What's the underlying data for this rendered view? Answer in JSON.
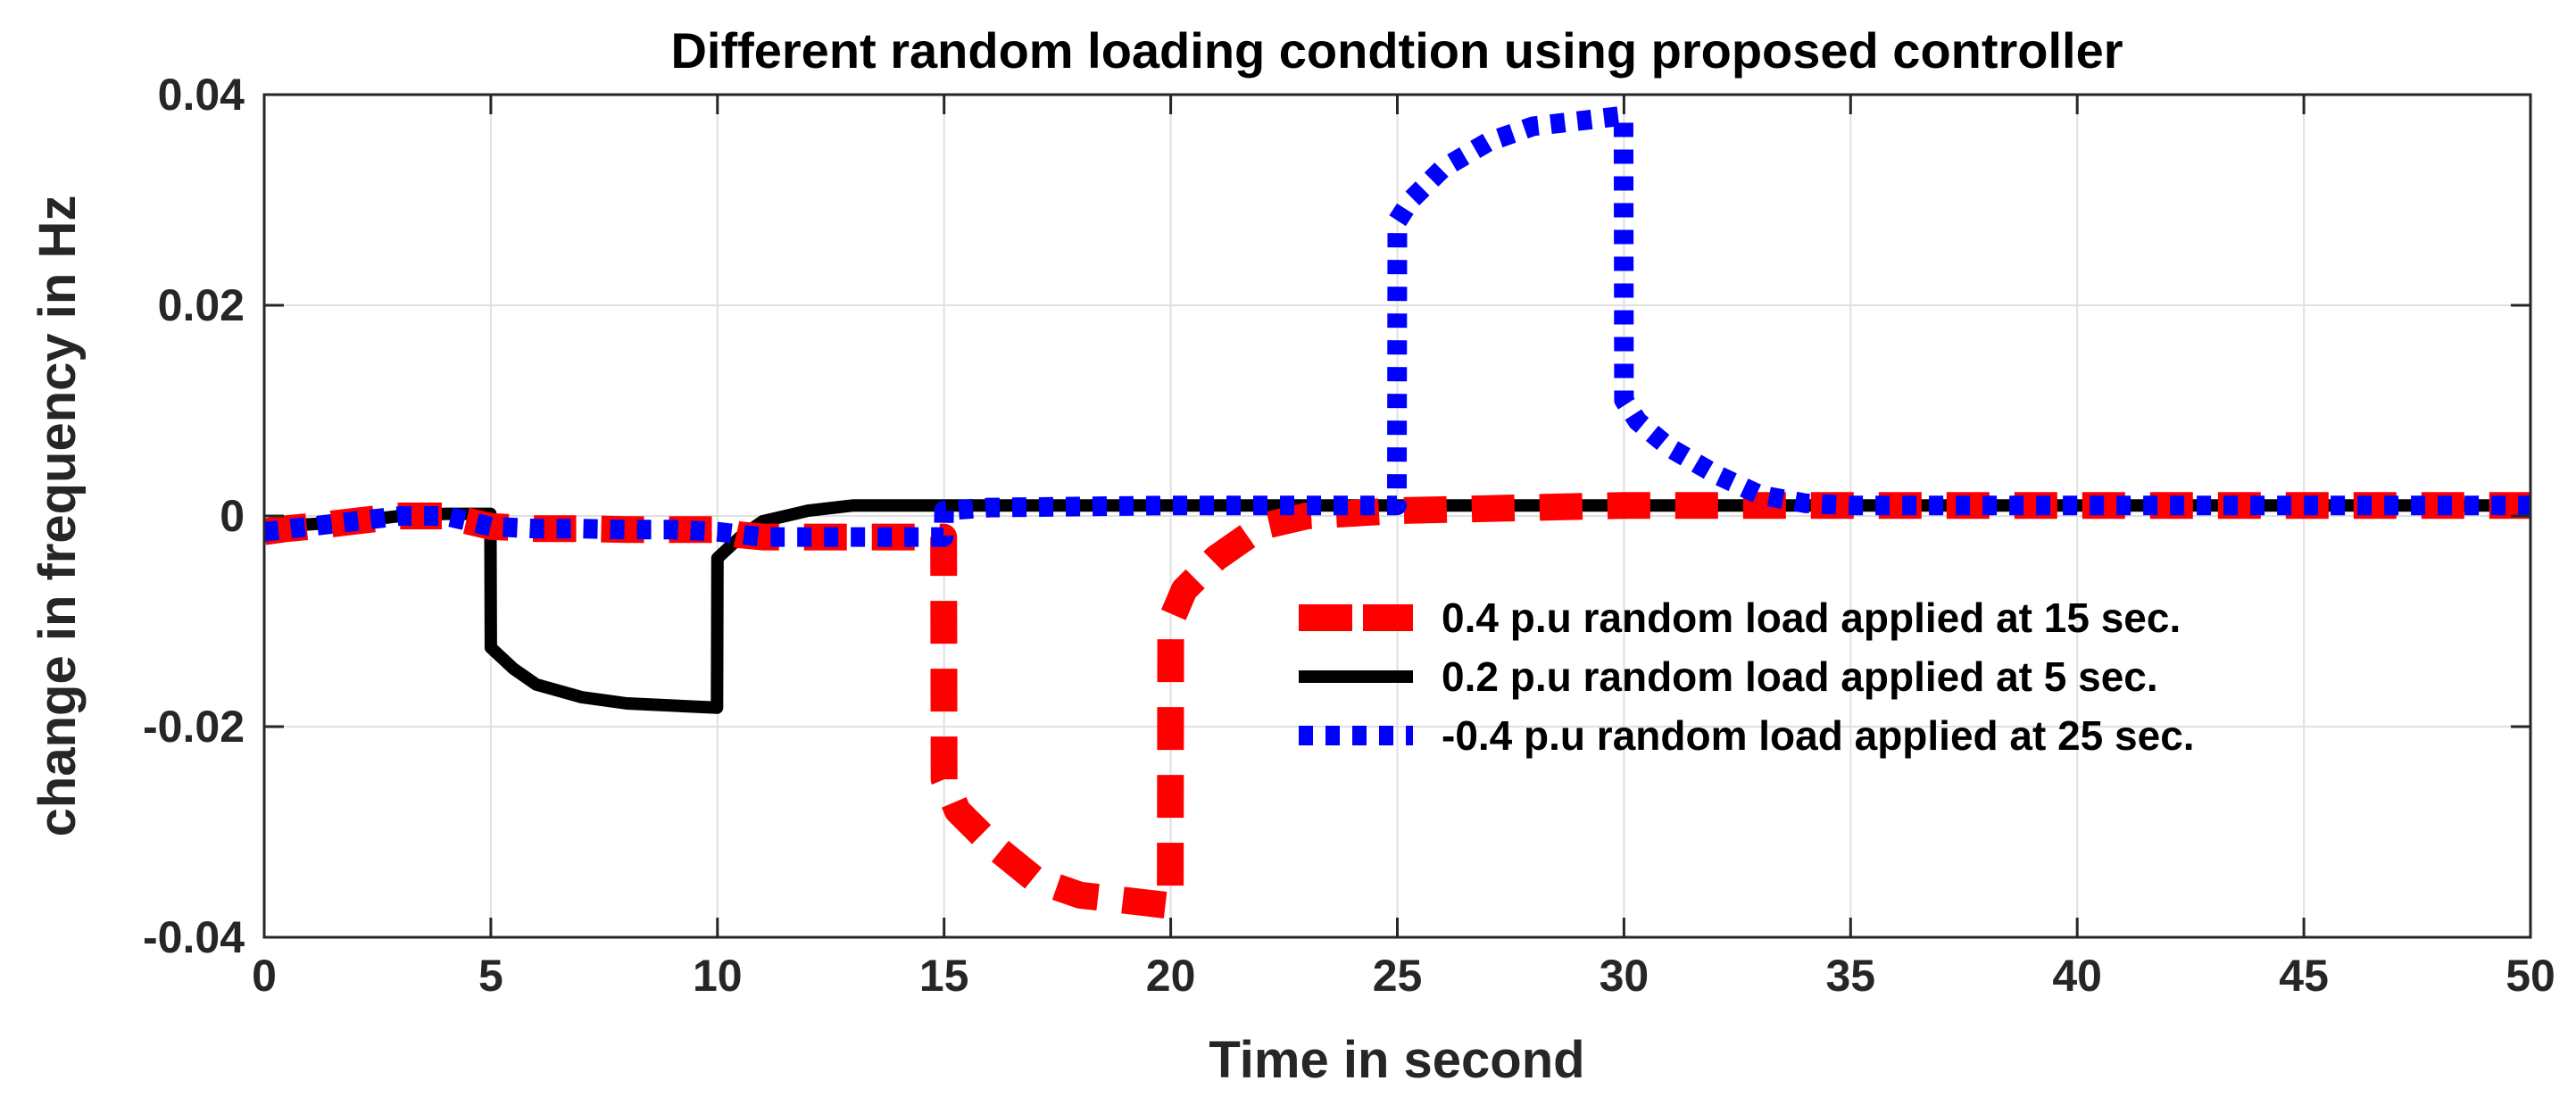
{
  "chart_data": {
    "type": "line",
    "title": "Different random loading condtion using proposed controller",
    "xlabel": "Time in second",
    "ylabel": "change in frequency in Hz",
    "xlim": [
      0,
      50
    ],
    "ylim": [
      -0.04,
      0.04
    ],
    "x_ticks": [
      0,
      5,
      10,
      15,
      20,
      25,
      30,
      35,
      40,
      45,
      50
    ],
    "y_ticks": [
      -0.04,
      -0.02,
      0,
      0.02,
      0.04
    ],
    "x_tick_labels": [
      "0",
      "5",
      "10",
      "15",
      "20",
      "25",
      "30",
      "35",
      "40",
      "45",
      "50"
    ],
    "y_tick_labels": [
      "-0.04",
      "-0.02",
      "0",
      "0.02",
      "0.04"
    ],
    "grid": true,
    "legend_position": "right-center",
    "series": [
      {
        "name": "0.4 p.u random load  applied at 15 sec.",
        "color": "#ff0000",
        "style": "dashed",
        "x": [
          0,
          0.5,
          1,
          2,
          3,
          4,
          5,
          6,
          7,
          8,
          9,
          10,
          10.5,
          11,
          12,
          13,
          14,
          14.99,
          15,
          15.3,
          16,
          17,
          18,
          19,
          19.99,
          20,
          20.3,
          21,
          22,
          23,
          25,
          30,
          35,
          40,
          45,
          50
        ],
        "y": [
          -0.0015,
          -0.0012,
          -0.001,
          -0.0005,
          0,
          0,
          -0.001,
          -0.0012,
          -0.0012,
          -0.0013,
          -0.0013,
          -0.0013,
          -0.0018,
          -0.002,
          -0.002,
          -0.002,
          -0.002,
          -0.002,
          -0.025,
          -0.028,
          -0.031,
          -0.0345,
          -0.036,
          -0.0365,
          -0.037,
          -0.01,
          -0.007,
          -0.004,
          -0.001,
          0,
          0.0005,
          0.001,
          0.001,
          0.001,
          0.001,
          0.001
        ]
      },
      {
        "name": "0.2 p.u random load  applied at 5 sec.",
        "color": "#000000",
        "style": "solid",
        "x": [
          0,
          1,
          2,
          3,
          4,
          4.99,
          5,
          5.5,
          6,
          7,
          8,
          9,
          9.99,
          10,
          10.5,
          11,
          12,
          13,
          14,
          15,
          20,
          30,
          40,
          50
        ],
        "y": [
          -0.001,
          -0.0008,
          -0.0005,
          0,
          0.0002,
          0.0002,
          -0.0125,
          -0.0145,
          -0.016,
          -0.0172,
          -0.0178,
          -0.018,
          -0.0182,
          -0.004,
          -0.002,
          -0.0005,
          0.0005,
          0.001,
          0.001,
          0.001,
          0.001,
          0.001,
          0.001,
          0.001
        ]
      },
      {
        "name": "-0.4 p.u random load  applied at 25 sec.",
        "color": "#0000ff",
        "style": "dotted",
        "x": [
          0,
          1,
          2,
          3,
          4,
          5,
          6,
          7,
          8,
          9,
          10,
          11,
          12,
          13,
          14,
          14.99,
          15,
          16,
          20,
          24.99,
          25,
          25.3,
          26,
          27,
          28,
          29,
          29.99,
          30,
          30.3,
          31,
          32,
          33,
          34,
          35,
          40,
          45,
          50
        ],
        "y": [
          -0.0015,
          -0.001,
          -0.0005,
          0,
          0,
          -0.001,
          -0.0012,
          -0.0012,
          -0.0013,
          -0.0013,
          -0.0015,
          -0.002,
          -0.002,
          -0.002,
          -0.002,
          -0.002,
          0.0005,
          0.0008,
          0.001,
          0.001,
          0.028,
          0.03,
          0.033,
          0.0355,
          0.037,
          0.0375,
          0.038,
          0.011,
          0.009,
          0.0065,
          0.004,
          0.002,
          0.0012,
          0.001,
          0.001,
          0.001,
          0.001
        ]
      }
    ]
  }
}
